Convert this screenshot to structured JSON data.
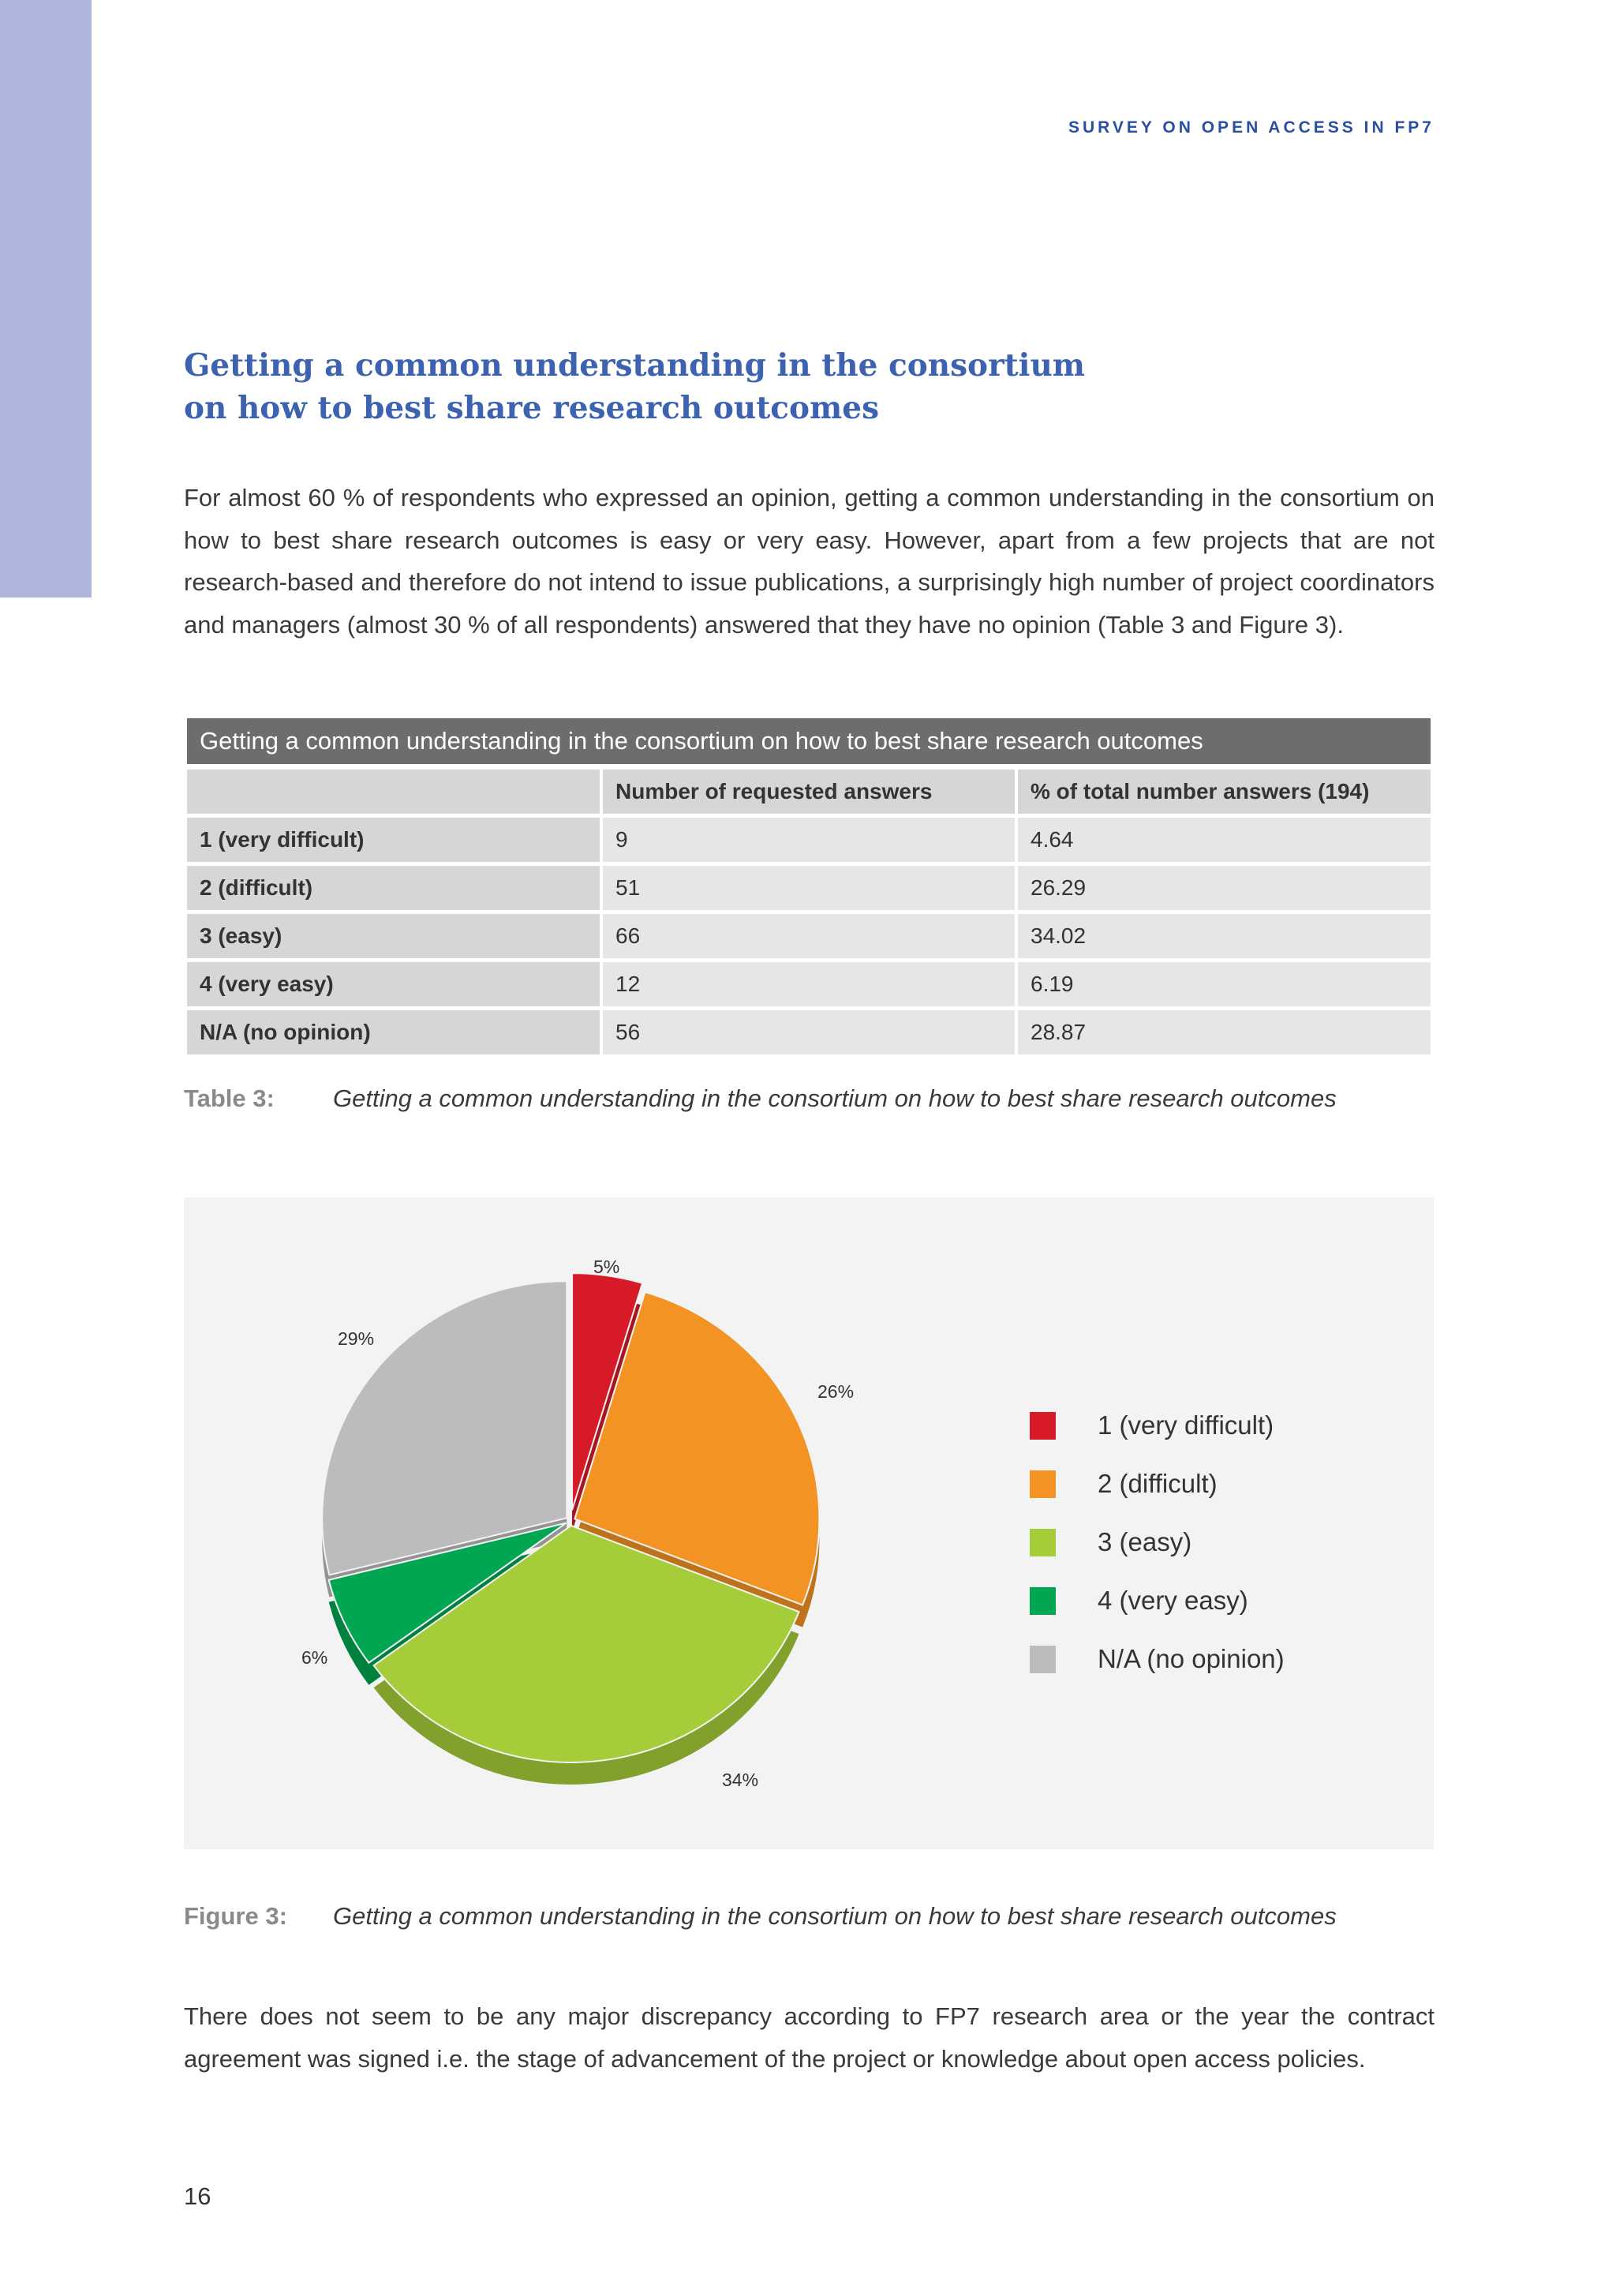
{
  "running_header": "SURVEY ON OPEN ACCESS IN FP7",
  "heading": "Getting a common understanding in the consortium on how to best share research outcomes",
  "paragraph1": "For almost 60 % of respondents who expressed an opinion, getting a common understanding in the consortium on how to best share research outcomes is easy or very easy. However, apart from a few projects that are not research-based and therefore do not intend to issue publications, a surprisingly high number of project coordinators and managers (almost 30 % of all respondents) answered that they have no opinion (Table 3 and Figure 3).",
  "table": {
    "title": "Getting a common understanding in the consortium on how to best share research outcomes",
    "headers": [
      "",
      "Number of requested answers",
      "% of total number answers (194)"
    ],
    "rows": [
      [
        "1 (very difficult)",
        "9",
        "4.64"
      ],
      [
        "2 (difficult)",
        "51",
        "26.29"
      ],
      [
        "3 (easy)",
        "66",
        "34.02"
      ],
      [
        "4 (very easy)",
        "12",
        "6.19"
      ],
      [
        "N/A (no opinion)",
        "56",
        "28.87"
      ]
    ],
    "caption_label": "Table 3:",
    "caption_text": "Getting a common understanding in the consortium on how to best share research outcomes"
  },
  "chart_data": {
    "type": "pie",
    "categories": [
      "1 (very difficult)",
      "2 (difficult)",
      "3 (easy)",
      "4 (very easy)",
      "N/A (no opinion)"
    ],
    "values": [
      4.64,
      26.29,
      34.02,
      6.19,
      28.87
    ],
    "data_labels": [
      "5%",
      "26%",
      "34%",
      "6%",
      "29%"
    ],
    "colors": [
      "#d71a28",
      "#f39323",
      "#a5cd39",
      "#00a651",
      "#bcbcbe"
    ],
    "legend_position": "right",
    "style": "3d-exploded"
  },
  "figure": {
    "caption_label": "Figure 3:",
    "caption_text": "Getting a common understanding in the consortium on how to best share research outcomes"
  },
  "paragraph2": "There does not seem to be any major discrepancy according to FP7 research area or the year the contract agreement was signed i.e. the stage of advancement of the project or knowledge about open access policies.",
  "page_number": "16"
}
